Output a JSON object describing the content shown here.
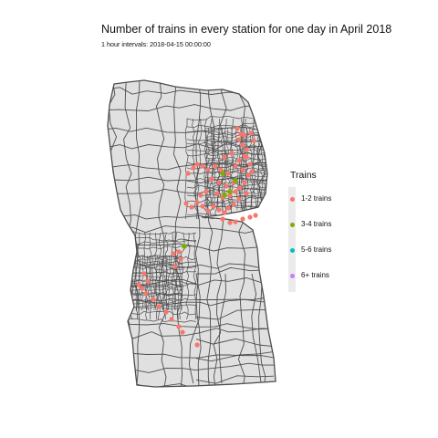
{
  "title": "Number of trains in every station for one day in April 2018",
  "subtitle": "1 hour intervals: 2018-04-15 00:00:00",
  "map": {
    "fill_color": "#e0e0e0",
    "border_color": "#4d4d4d",
    "background": "#ffffff"
  },
  "legend": {
    "title": "Trains",
    "items": [
      {
        "label": "1-2 trains",
        "color": "#F8766D"
      },
      {
        "label": "3-4 trains",
        "color": "#7CAE00"
      },
      {
        "label": "5-6 trains",
        "color": "#00BFC4"
      },
      {
        "label": "6+ trains",
        "color": "#C77CFF"
      }
    ]
  }
}
